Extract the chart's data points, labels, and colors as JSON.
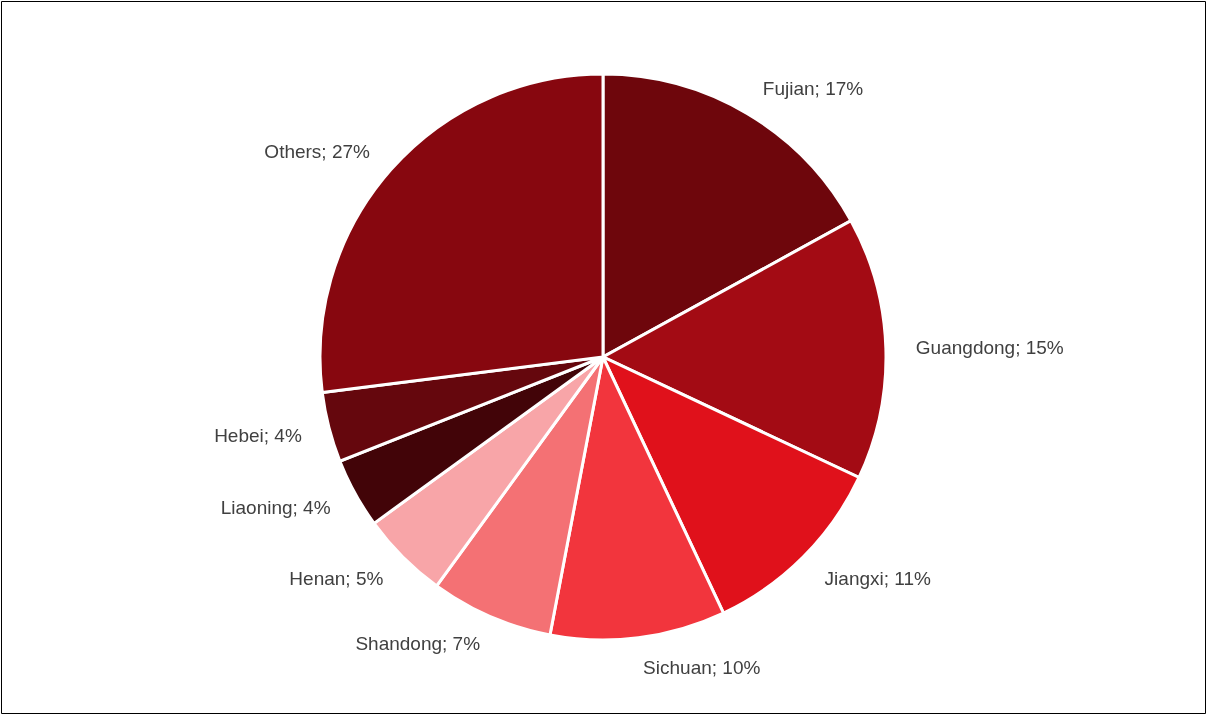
{
  "chart_data": {
    "type": "pie",
    "categories": [
      "Fujian",
      "Guangdong",
      "Jiangxi",
      "Sichuan",
      "Shandong",
      "Henan",
      "Liaoning",
      "Hebei",
      "Others"
    ],
    "values": [
      17,
      15,
      11,
      10,
      7,
      5,
      4,
      4,
      27
    ],
    "value_labels": [
      "17%",
      "15%",
      "11%",
      "10%",
      "7%",
      "5%",
      "4%",
      "4%",
      "27%"
    ],
    "colors": [
      "#6e060c",
      "#a30b14",
      "#e0111b",
      "#f2353d",
      "#f47174",
      "#f8a5a8",
      "#420408",
      "#65070d",
      "#87070f"
    ]
  }
}
